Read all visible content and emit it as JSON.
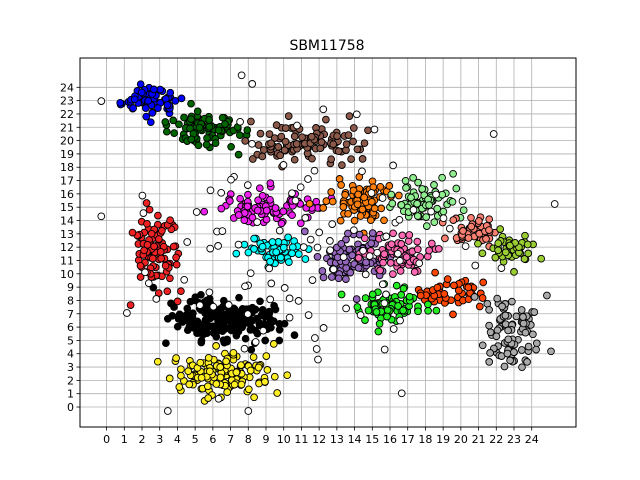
{
  "chart_data": {
    "type": "scatter",
    "title": "SBM11758",
    "xlabel": "",
    "ylabel": "",
    "xlim": [
      -1.5,
      26.5
    ],
    "ylim": [
      -1.5,
      26.2
    ],
    "xticks": [
      0,
      1,
      2,
      3,
      4,
      5,
      6,
      7,
      8,
      9,
      10,
      11,
      12,
      13,
      14,
      15,
      16,
      17,
      18,
      19,
      20,
      21,
      22,
      23,
      24
    ],
    "yticks": [
      0,
      1,
      2,
      3,
      4,
      5,
      6,
      7,
      8,
      9,
      10,
      11,
      12,
      13,
      14,
      15,
      16,
      17,
      18,
      19,
      20,
      21,
      22,
      23,
      24
    ],
    "grid": true,
    "legend": "none",
    "marker": "circle with black edge",
    "clusters": [
      {
        "color": "#0000ff",
        "center": [
          2.5,
          23.0
        ],
        "spread": [
          1.3,
          0.8
        ],
        "count": 70
      },
      {
        "color": "#006400",
        "center": [
          5.8,
          20.8
        ],
        "spread": [
          1.5,
          0.9
        ],
        "count": 90
      },
      {
        "color": "#8b5a4b",
        "center": [
          11.5,
          19.8
        ],
        "spread": [
          2.2,
          1.1
        ],
        "count": 110
      },
      {
        "color": "#ee2222",
        "center": [
          2.8,
          11.5
        ],
        "spread": [
          0.9,
          2.0
        ],
        "count": 90
      },
      {
        "color": "#ee22ee",
        "center": [
          9.2,
          15.0
        ],
        "spread": [
          2.0,
          0.9
        ],
        "count": 90
      },
      {
        "color": "#ff7f0e",
        "center": [
          14.5,
          15.5
        ],
        "spread": [
          1.3,
          1.2
        ],
        "count": 90
      },
      {
        "color": "#90ee90",
        "center": [
          17.8,
          15.5
        ],
        "spread": [
          1.3,
          1.3
        ],
        "count": 80
      },
      {
        "color": "#fa8072",
        "center": [
          20.8,
          13.3
        ],
        "spread": [
          1.0,
          0.8
        ],
        "count": 50
      },
      {
        "color": "#9acd32",
        "center": [
          22.8,
          11.8
        ],
        "spread": [
          1.0,
          0.8
        ],
        "count": 50
      },
      {
        "color": "#00ffff",
        "center": [
          9.5,
          11.8
        ],
        "spread": [
          1.3,
          0.8
        ],
        "count": 60
      },
      {
        "color": "#9467bd",
        "center": [
          13.8,
          11.0
        ],
        "spread": [
          1.5,
          1.3
        ],
        "count": 90
      },
      {
        "color": "#ff69b4",
        "center": [
          16.5,
          11.5
        ],
        "spread": [
          1.3,
          1.0
        ],
        "count": 70
      },
      {
        "color": "#ff4500",
        "center": [
          19.5,
          8.5
        ],
        "spread": [
          1.3,
          0.8
        ],
        "count": 50
      },
      {
        "color": "#22ee22",
        "center": [
          16.3,
          7.5
        ],
        "spread": [
          1.5,
          1.0
        ],
        "count": 80
      },
      {
        "color": "#000000",
        "center": [
          6.8,
          6.5
        ],
        "spread": [
          2.3,
          1.2
        ],
        "count": 200
      },
      {
        "color": "#ffee22",
        "center": [
          7.0,
          2.5
        ],
        "spread": [
          2.0,
          1.2
        ],
        "count": 150
      },
      {
        "color": "#aaaaaa",
        "center": [
          22.8,
          5.5
        ],
        "spread": [
          1.3,
          2.0
        ],
        "count": 90
      },
      {
        "color": "#ffffff",
        "center": [
          12.0,
          12.0
        ],
        "spread": [
          8.0,
          7.5
        ],
        "count": 110
      }
    ]
  }
}
